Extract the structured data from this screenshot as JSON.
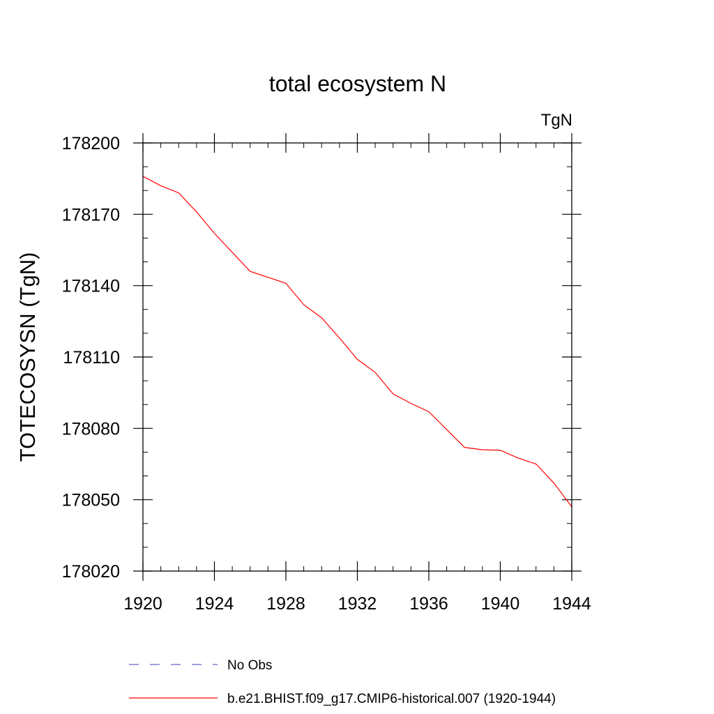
{
  "chart_data": {
    "type": "line",
    "title": "total ecosystem N",
    "units_label": "TgN",
    "ylabel": "TOTECOSYSN  (TgN)",
    "xlabel": "",
    "xlim": [
      1920,
      1944
    ],
    "ylim": [
      178020,
      178200
    ],
    "xticks": [
      1920,
      1924,
      1928,
      1932,
      1936,
      1940,
      1944
    ],
    "yticks": [
      178020,
      178050,
      178080,
      178110,
      178140,
      178170,
      178200
    ],
    "grid": false,
    "legend_position": "bottom",
    "series": [
      {
        "name": "No Obs",
        "color": "#6666cc",
        "style": "dashed",
        "x": [],
        "y": []
      },
      {
        "name": "b.e21.BHIST.f09_g17.CMIP6-historical.007 (1920-1944)",
        "color": "#ff0000",
        "style": "solid",
        "x": [
          1920,
          1921,
          1922,
          1923,
          1924,
          1925,
          1926,
          1927,
          1928,
          1929,
          1930,
          1931,
          1932,
          1933,
          1934,
          1935,
          1936,
          1937,
          1938,
          1939,
          1940,
          1941,
          1942,
          1943,
          1944
        ],
        "y": [
          178186,
          178182,
          178179,
          178171,
          178162,
          178154,
          178146,
          178143.5,
          178141,
          178132,
          178126.5,
          178118,
          178109,
          178103.5,
          178094.5,
          178090.5,
          178087,
          178079.5,
          178072,
          178071,
          178070.8,
          178067.5,
          178065,
          178057,
          178047
        ]
      }
    ]
  }
}
